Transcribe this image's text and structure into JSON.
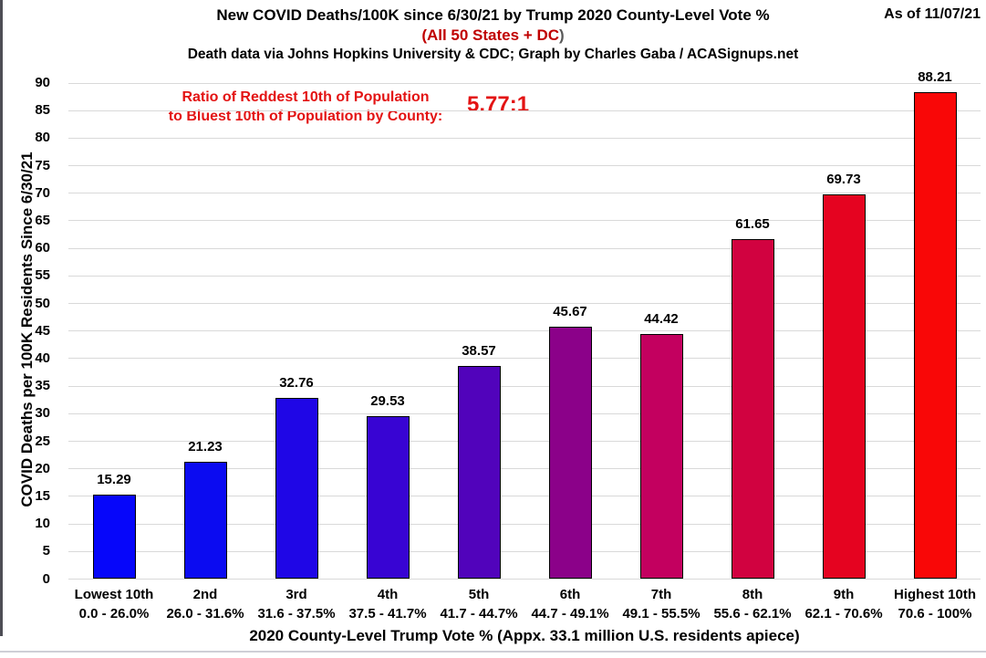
{
  "header": {
    "title": "New COVID Deaths/100K since 6/30/21 by Trump 2020 County-Level Vote %",
    "as_of": "As of 11/07/21",
    "subtitle_red": "(All 50 States + DC",
    "subtitle_close": ")",
    "credit": "Death data via Johns Hopkins University & CDC; Graph by Charles Gaba / ACASignups.net"
  },
  "annotation": {
    "line1": "Ratio of Reddest 10th of Population",
    "line2": "to Bluest 10th of Population by County:",
    "value": "5.77:1"
  },
  "chart_data": {
    "type": "bar",
    "title": "New COVID Deaths/100K since 6/30/21 by Trump 2020 County-Level Vote %",
    "subtitle": "(All 50 States + DC)",
    "credit": "Death data via Johns Hopkins University & CDC; Graph by Charles Gaba / ACASignups.net",
    "as_of": "As of 11/07/21",
    "annotation": "Ratio of Reddest 10th of Population to Bluest 10th of Population by County: 5.77:1",
    "categories": [
      "Lowest 10th",
      "2nd",
      "3rd",
      "4th",
      "5th",
      "6th",
      "7th",
      "8th",
      "9th",
      "Highest 10th"
    ],
    "category_ranges": [
      "0.0 - 26.0%",
      "26.0 - 31.6%",
      "31.6 - 37.5%",
      "37.5 - 41.7%",
      "41.7 - 44.7%",
      "44.7 - 49.1%",
      "49.1 - 55.5%",
      "55.6 - 62.1%",
      "62.1 - 70.6%",
      "70.6 - 100%"
    ],
    "values": [
      15.29,
      21.23,
      32.76,
      29.53,
      38.57,
      45.67,
      44.42,
      61.65,
      69.73,
      88.21
    ],
    "value_labels": [
      "15.29",
      "21.23",
      "32.76",
      "29.53",
      "38.57",
      "45.67",
      "44.42",
      "61.65",
      "69.73",
      "88.21"
    ],
    "bar_colors": [
      "#0606fa",
      "#0b0bf1",
      "#1f06e6",
      "#3804d3",
      "#5103bb",
      "#8b0189",
      "#c3005f",
      "#d10240",
      "#e50320",
      "#f90707"
    ],
    "xlabel": "2020 County-Level Trump Vote % (Appx. 33.1 million U.S. residents apiece)",
    "ylabel": "COVID Deaths per 100K Residents Since 6/30/21",
    "ylim": [
      0,
      90
    ],
    "yticks": [
      0,
      5,
      10,
      15,
      20,
      25,
      30,
      35,
      40,
      45,
      50,
      55,
      60,
      65,
      70,
      75,
      80,
      85,
      90
    ],
    "grid": "horizontal",
    "legend": "none"
  },
  "colors": {
    "grid": "#d9d9d9",
    "subtitle_red": "#c00000",
    "subtitle_close_gray": "#595959",
    "annotation_red": "#e31313",
    "text_black": "#000000"
  }
}
